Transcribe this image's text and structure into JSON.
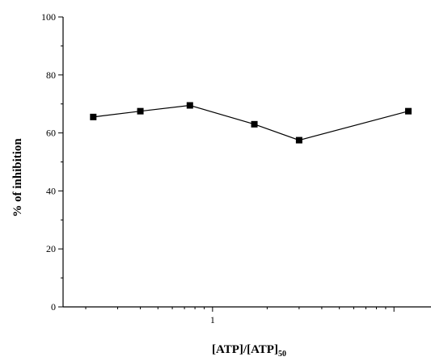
{
  "chart_data": {
    "type": "line",
    "x_scale": "log",
    "x": [
      0.22,
      0.4,
      0.75,
      1.7,
      3.0,
      12.0
    ],
    "y": [
      65.5,
      67.5,
      69.5,
      63,
      57.5,
      67.5
    ],
    "xlim": [
      0.15,
      16
    ],
    "ylim": [
      0,
      100
    ],
    "yticks": [
      0,
      20,
      40,
      60,
      80,
      100
    ],
    "yticklabels": [
      "0",
      "20",
      "40",
      "60",
      "80",
      "100"
    ],
    "xticks_major": [
      1
    ],
    "xticklabels": [
      "1"
    ],
    "xlabel_main": "[ATP]/[ATP]",
    "xlabel_sub": "50",
    "ylabel": "% of inhibition",
    "marker": "square",
    "color": "#000000",
    "grid": false
  }
}
